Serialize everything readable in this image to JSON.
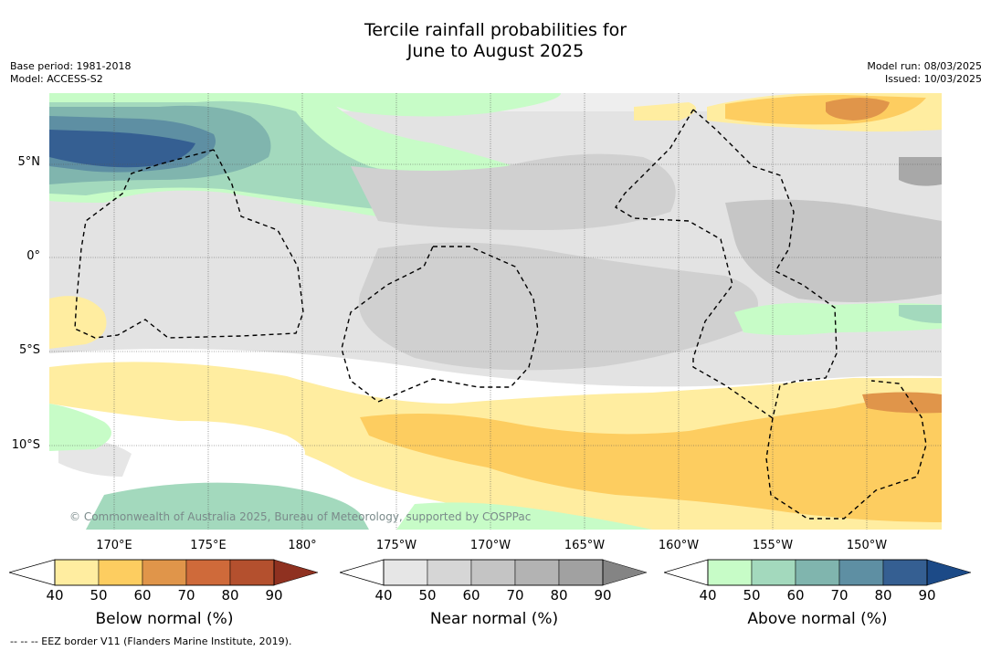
{
  "title": {
    "line1": "Tercile rainfall probabilities for",
    "line2": "June to August 2025"
  },
  "meta_left": {
    "base_period": "Base period: 1981-2018",
    "model": "Model: ACCESS-S2"
  },
  "meta_right": {
    "model_run": "Model run: 08/03/2025",
    "issued": "Issued: 10/03/2025"
  },
  "lat_labels": [
    "5°N",
    "0°",
    "5°S",
    "10°S"
  ],
  "lon_labels": [
    "170°E",
    "175°E",
    "180°",
    "175°W",
    "170°W",
    "165°W",
    "160°W",
    "155°W",
    "150°W"
  ],
  "copyright": "© Commonwealth of Australia 2025, Bureau of Meteorology, supported by COSPPac",
  "footnote": "--  --  -- EEZ border V11 (Flanders Marine Institute, 2019).",
  "colorbars": [
    {
      "title": "Below normal (%)",
      "ticks": [
        "40",
        "50",
        "60",
        "70",
        "80",
        "90"
      ],
      "colors": [
        "#ffeda0",
        "#fdcd60",
        "#e0954a",
        "#cf6a3a",
        "#b4502e",
        "#8f3120"
      ]
    },
    {
      "title": "Near normal (%)",
      "ticks": [
        "40",
        "50",
        "60",
        "70",
        "80",
        "90"
      ],
      "colors": [
        "#e6e6e6",
        "#d6d6d6",
        "#c4c4c4",
        "#b3b3b3",
        "#a1a1a1",
        "#848484"
      ]
    },
    {
      "title": "Above normal (%)",
      "ticks": [
        "40",
        "50",
        "60",
        "70",
        "80",
        "90"
      ],
      "colors": [
        "#c7fcc7",
        "#a3d9bd",
        "#80b5ae",
        "#5e8fa3",
        "#355f92",
        "#1c4a87"
      ]
    }
  ]
}
